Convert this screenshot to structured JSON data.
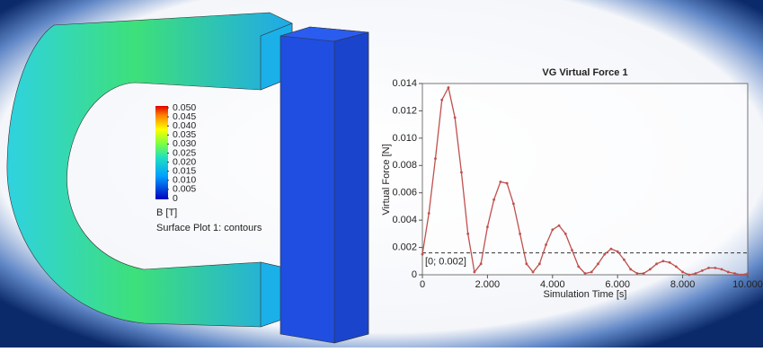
{
  "chart_data": {
    "type": "line",
    "title": "VG Virtual Force 1",
    "x_label": "Simulation Time [s]",
    "y_label": "Virtual Force [N]",
    "x": [
      0,
      0.2,
      0.4,
      0.6,
      0.8,
      1.0,
      1.2,
      1.4,
      1.6,
      1.8,
      2.0,
      2.2,
      2.4,
      2.6,
      2.8,
      3.0,
      3.2,
      3.4,
      3.6,
      3.8,
      4.0,
      4.2,
      4.4,
      4.6,
      4.8,
      5.0,
      5.2,
      5.4,
      5.6,
      5.8,
      6.0,
      6.2,
      6.4,
      6.6,
      6.8,
      7.0,
      7.2,
      7.4,
      7.6,
      7.8,
      8.0,
      8.2,
      8.4,
      8.6,
      8.8,
      9.0,
      9.2,
      9.4,
      9.6,
      9.8,
      10.0
    ],
    "series": [
      {
        "name": "VG Virtual Force 1",
        "color": "#c0504d",
        "values": [
          0.0015,
          0.0045,
          0.0085,
          0.0128,
          0.0137,
          0.0115,
          0.0075,
          0.003,
          0.0002,
          0.0008,
          0.0035,
          0.0055,
          0.0068,
          0.0067,
          0.0052,
          0.003,
          0.0008,
          0.0002,
          0.0008,
          0.0022,
          0.0033,
          0.0036,
          0.003,
          0.0018,
          0.0006,
          0.0001,
          0.0002,
          0.0008,
          0.0015,
          0.0019,
          0.0017,
          0.0011,
          0.0004,
          0.0001,
          0.0001,
          0.0004,
          0.0008,
          0.001,
          0.0009,
          0.0006,
          0.0002,
          0.0,
          0.0001,
          0.0003,
          0.0005,
          0.0005,
          0.0004,
          0.0002,
          0.0001,
          0.0,
          0.0001
        ]
      }
    ],
    "xlim": [
      0,
      10
    ],
    "xticks": [
      0,
      {
        "value": 2,
        "label": "2.000"
      },
      {
        "value": 4,
        "label": "4.000"
      },
      {
        "value": 6,
        "label": "6.000"
      },
      {
        "value": 8,
        "label": "8.000"
      },
      {
        "value": 10,
        "label": "10.000"
      }
    ],
    "ylim": [
      0,
      0.014
    ],
    "yticks": [
      0,
      0.002,
      0.004,
      0.006,
      0.008,
      {
        "value": 0.01,
        "label": "0.010"
      },
      0.012,
      0.014
    ],
    "reference_line": {
      "value": 0.0016,
      "label": "[0; 0.002]"
    }
  },
  "color_legend": {
    "lim": [
      0,
      0.05
    ],
    "ticks": [
      0,
      {
        "value": 0.005,
        "label": "0.005"
      },
      {
        "value": 0.01,
        "label": "0.010"
      },
      {
        "value": 0.015,
        "label": "0.015"
      },
      {
        "value": 0.02,
        "label": "0.020"
      },
      {
        "value": 0.025,
        "label": "0.025"
      },
      {
        "value": 0.03,
        "label": "0.030"
      },
      {
        "value": 0.035,
        "label": "0.035"
      },
      {
        "value": 0.04,
        "label": "0.040"
      },
      {
        "value": 0.045,
        "label": "0.045"
      },
      {
        "value": 0.05,
        "label": "0.050"
      }
    ],
    "unit": "B [T]",
    "caption": "Surface Plot 1: contours"
  }
}
